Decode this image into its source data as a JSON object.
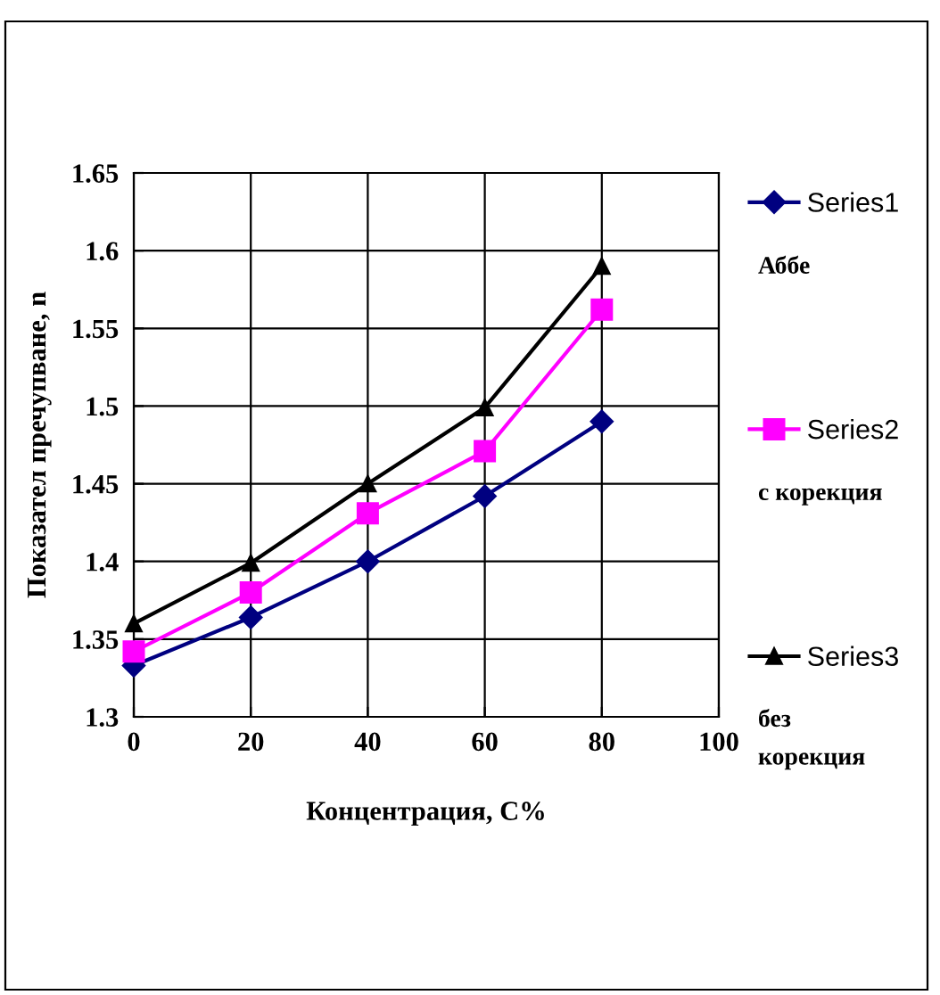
{
  "chart_data": {
    "type": "line",
    "xlabel": "Концентрация, С%",
    "ylabel": "Показател пречупване, n",
    "x": [
      0,
      20,
      40,
      60,
      80
    ],
    "series": [
      {
        "name": "Series1",
        "color": "#000080",
        "marker": "diamond",
        "values": [
          1.333,
          1.364,
          1.4,
          1.442,
          1.49
        ]
      },
      {
        "name": "Series2",
        "color": "#ff00ff",
        "marker": "square",
        "values": [
          1.342,
          1.38,
          1.431,
          1.471,
          1.562
        ]
      },
      {
        "name": "Series3",
        "color": "#000000",
        "marker": "triangle",
        "values": [
          1.36,
          1.399,
          1.45,
          1.499,
          1.59
        ]
      }
    ],
    "xlim": [
      0,
      100
    ],
    "xticks": [
      0,
      20,
      40,
      60,
      80,
      100
    ],
    "ylim": [
      1.3,
      1.65
    ],
    "yticks": [
      {
        "value": 1.3,
        "label": "1.3"
      },
      {
        "value": 1.35,
        "label": "1.35"
      },
      {
        "value": 1.4,
        "label": "1.4"
      },
      {
        "value": 1.45,
        "label": "1.45"
      },
      {
        "value": 1.5,
        "label": "1.5"
      },
      {
        "value": 1.55,
        "label": "1.55"
      },
      {
        "value": 1.6,
        "label": "1.6"
      },
      {
        "value": 1.65,
        "label": "1.65"
      }
    ],
    "grid": true,
    "legend": "right",
    "line_style": "solid",
    "annotations": [
      "Аббе",
      "с корекция",
      "без корекция"
    ]
  }
}
